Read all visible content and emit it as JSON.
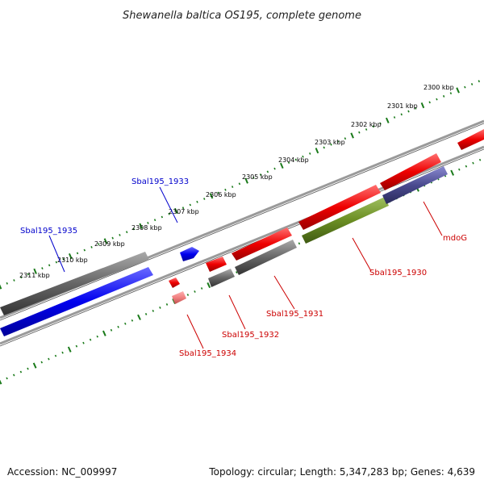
{
  "title": "Shewanella baltica OS195, complete genome",
  "footer": {
    "accession": "Accession: NC_009997",
    "stats": "Topology: circular; Length: 5,347,283 bp; Genes: 4,639"
  },
  "colors": {
    "backbone": "#808080",
    "ticks": "#1a7a1a",
    "forward_gene": "#0000ee",
    "reverse_gene": "#ee0000",
    "label_blue": "#0000cc",
    "label_red": "#cc0000",
    "olive_feature": "#6b8e23",
    "slate_feature": "#4a4a8f",
    "gray_feature": "#666666",
    "pink_feature": "#f08080"
  },
  "kbp_labels": [
    "2300 kbp",
    "2301 kbp",
    "2302 kbp",
    "2303 kbp",
    "2304 kbp",
    "2305 kbp",
    "2306 kbp",
    "2307 kbp",
    "2308 kbp",
    "2309 kbp",
    "2310 kbp",
    "2311 kbp"
  ],
  "gene_labels": {
    "sbal1933": "Sbal195_1933",
    "sbal1935": "Sbal195_1935",
    "mdoG": "mdoG",
    "sbal1930": "Sbal195_1930",
    "sbal1931": "Sbal195_1931",
    "sbal1932": "Sbal195_1932",
    "sbal1934": "Sbal195_1934"
  }
}
